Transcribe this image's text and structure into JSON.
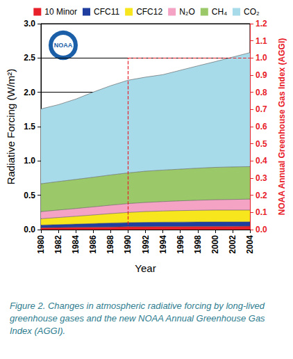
{
  "chart_data": {
    "type": "area",
    "stacked": true,
    "grid": true,
    "legend": "top",
    "logo": "NOAA",
    "x_label": "Year",
    "y_label": "Radiative Forcing (W/m²)",
    "y2_label": "NOAA Annual Greenhouse Gas Index (AGGI)",
    "caption": "Figure 2. Changes in atmospheric radiative forcing by long-lived greenhouse gases and the new NOAA Annual Greenhouse Gas Index (AGGI).",
    "categories": [
      "1980",
      "1982",
      "1984",
      "1986",
      "1988",
      "1990",
      "1992",
      "1994",
      "1996",
      "1998",
      "2000",
      "2002",
      "2004"
    ],
    "series": [
      {
        "name": "10 Minor",
        "color": "#e8202a",
        "values": [
          0.027,
          0.03,
          0.033,
          0.036,
          0.039,
          0.042,
          0.044,
          0.045,
          0.046,
          0.047,
          0.048,
          0.049,
          0.05
        ]
      },
      {
        "name": "CFC11",
        "color": "#1f3ea0",
        "values": [
          0.039,
          0.043,
          0.047,
          0.052,
          0.057,
          0.06,
          0.062,
          0.063,
          0.064,
          0.064,
          0.064,
          0.063,
          0.063
        ]
      },
      {
        "name": "CFC12",
        "color": "#f7e51e",
        "values": [
          0.092,
          0.103,
          0.114,
          0.125,
          0.137,
          0.148,
          0.157,
          0.163,
          0.167,
          0.17,
          0.172,
          0.172,
          0.171
        ]
      },
      {
        "name": "N₂O",
        "color": "#f4a3c4",
        "values": [
          0.104,
          0.109,
          0.113,
          0.118,
          0.123,
          0.129,
          0.133,
          0.137,
          0.142,
          0.147,
          0.151,
          0.155,
          0.16
        ]
      },
      {
        "name": "CH₄",
        "color": "#9bc96a",
        "values": [
          0.406,
          0.415,
          0.424,
          0.432,
          0.44,
          0.447,
          0.455,
          0.459,
          0.462,
          0.467,
          0.472,
          0.474,
          0.474
        ]
      },
      {
        "name": "CO₂",
        "color": "#a8dbea",
        "values": [
          1.09,
          1.12,
          1.17,
          1.24,
          1.3,
          1.35,
          1.37,
          1.39,
          1.44,
          1.49,
          1.54,
          1.6,
          1.66
        ]
      }
    ],
    "ylim": [
      0,
      3
    ],
    "yticks": [
      {
        "value": 0,
        "label": "0.0"
      },
      0.5,
      {
        "value": 1,
        "label": "1.0"
      },
      1.5,
      {
        "value": 2,
        "label": "2.0"
      },
      2.5,
      {
        "value": 3,
        "label": "3.0"
      }
    ],
    "y2lim": [
      0,
      1.2
    ],
    "y2ticks": [
      {
        "value": 0,
        "label": "0.0"
      },
      0.1,
      0.2,
      0.3,
      0.4,
      0.5,
      0.6,
      0.7,
      0.8,
      0.9,
      {
        "value": 1,
        "label": "1.0"
      },
      1.1,
      1.2
    ],
    "reference": {
      "x": "1990",
      "value": 1.0,
      "axis": "y2",
      "color": "#e8202a",
      "line_style": "dashed"
    }
  }
}
